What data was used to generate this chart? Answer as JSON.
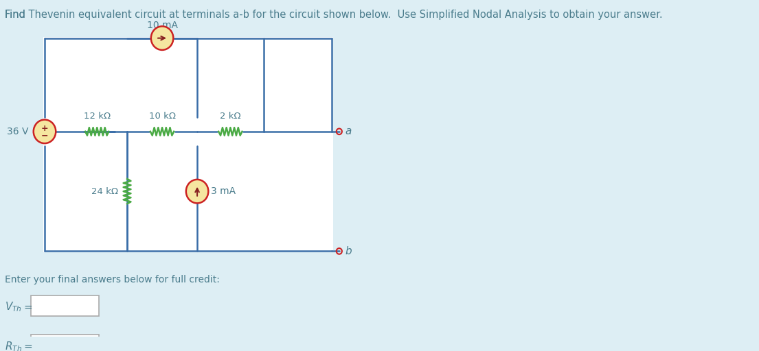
{
  "bg_color": "#ddeef4",
  "circuit_bg": "#ffffff",
  "text_color": "#4a7c8c",
  "wire_color": "#3a6ea8",
  "resistor_color": "#4aaa44",
  "source_circle_fill": "#f5e6a0",
  "source_circle_edge": "#cc2222",
  "arrow_color": "#882222",
  "terminal_color": "#cc2222",
  "title_text": "Find Thevenin equivalent circuit at terminals a-b for the circuit shown below.  Use Simplified Nodal Analysis to obtain your answer.",
  "title_plain": "Find ",
  "title_link1": "Thevenin equivalent",
  "title_mid": " circuit at terminals a-b for the circuit shown below.  Use ",
  "title_link2": "Simplified Nodal Analysis",
  "title_end": " to obtain your answer.",
  "label_36V": "36 V",
  "label_12k": "12 kΩ",
  "label_10k": "10 kΩ",
  "label_2k": "2 kΩ",
  "label_24k": "24 kΩ",
  "label_10mA": "10 mA",
  "label_3mA": "3 mA",
  "label_a": "a",
  "label_b": "b",
  "label_vth": "V",
  "label_rth": "R",
  "label_th": "Th",
  "footer_text1": "Enter your final answers below for full credit:",
  "footer_vth": "VTh =",
  "footer_rth": "RTh ="
}
